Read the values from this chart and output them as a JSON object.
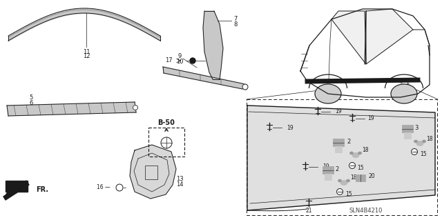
{
  "bg_color": "#ffffff",
  "fig_width": 6.4,
  "fig_height": 3.19,
  "diagram_code": "SLN4B4210",
  "line_color": "#1a1a1a",
  "gray_fill": "#c8c8c8",
  "dark_gray": "#555555"
}
